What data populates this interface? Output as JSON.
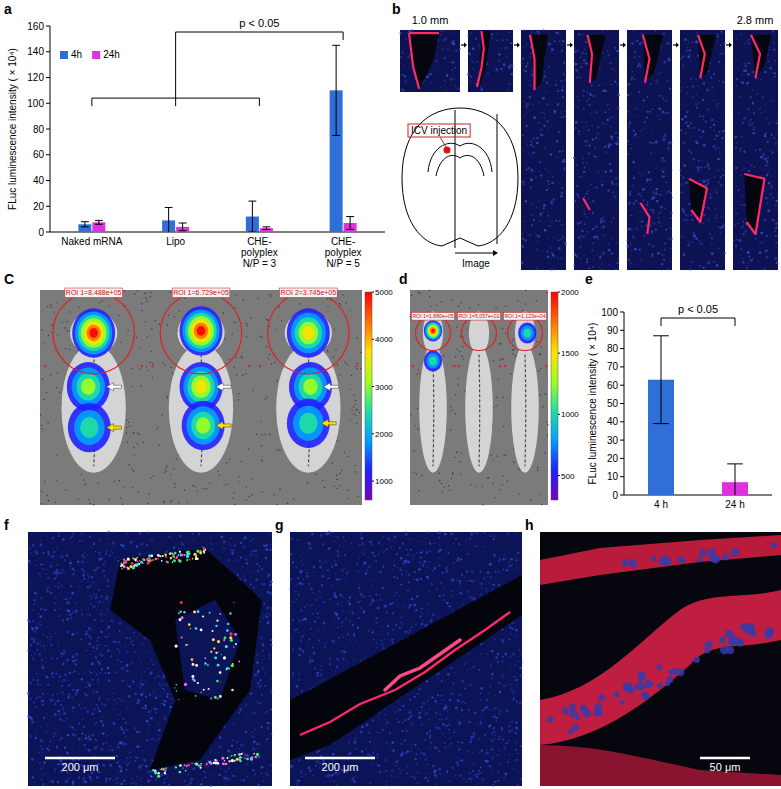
{
  "chart_data": [
    {
      "type": "bar",
      "y_label": "FLuc luminescence intensity ( × 10⁴)",
      "categories": [
        "Naked mRNA",
        "Lipo",
        "CHE-polyplex N/P = 3",
        "CHE-polyplex N/P = 5"
      ],
      "series": [
        {
          "name": "4h",
          "color": "#2f6fd8",
          "values": [
            6,
            9,
            12,
            110
          ],
          "errors": [
            2,
            10,
            12,
            35
          ]
        },
        {
          "name": "24h",
          "color": "#e030e0",
          "values": [
            7.5,
            4,
            3,
            7
          ],
          "errors": [
            1.5,
            3,
            1,
            5
          ]
        }
      ],
      "ylim": [
        0,
        160
      ],
      "yticks": [
        0,
        20,
        40,
        60,
        80,
        100,
        120,
        140,
        160
      ],
      "legend": "upper-left",
      "annotation": "p < 0.05"
    },
    {
      "type": "bar",
      "y_label": "FLuc luminescence intensity ( × 10⁴)",
      "categories": [
        "4 h",
        "24 h"
      ],
      "values": [
        63,
        7
      ],
      "errors": [
        24,
        10
      ],
      "colors": [
        "#2f6fd8",
        "#e030e0"
      ],
      "ylim": [
        0,
        100
      ],
      "yticks": [
        0,
        10,
        20,
        30,
        40,
        50,
        60,
        70,
        80,
        90,
        100
      ],
      "annotation": "p < 0.05"
    }
  ],
  "panels": {
    "labels": [
      "a",
      "b",
      "C",
      "d",
      "e",
      "f",
      "g",
      "h"
    ],
    "b": {
      "depth_start": "1.0 mm",
      "depth_end": "2.8 mm",
      "injection": "ICV injection",
      "section": "Image"
    },
    "c": {
      "rois": [
        "ROI 1=8.488e+05",
        "ROI 1=6.729e+05",
        "ROI 2=3.745e+05"
      ],
      "colorbar": {
        "range": [
          600,
          5000
        ],
        "ticks": [
          1000,
          2000,
          3000,
          4000,
          5000
        ]
      }
    },
    "d": {
      "rois": [
        "ROI 1=1.880e+05",
        "ROI 1=5.057e+02",
        "ROI 1=1.123e+04"
      ],
      "colorbar": {
        "range": [
          300,
          2000
        ],
        "ticks": [
          500,
          1000,
          1500,
          2000
        ]
      }
    },
    "f": {
      "scale_bar": "200 μm"
    },
    "g": {
      "scale_bar": "200 μm"
    },
    "h": {
      "scale_bar": "50 μm"
    }
  }
}
